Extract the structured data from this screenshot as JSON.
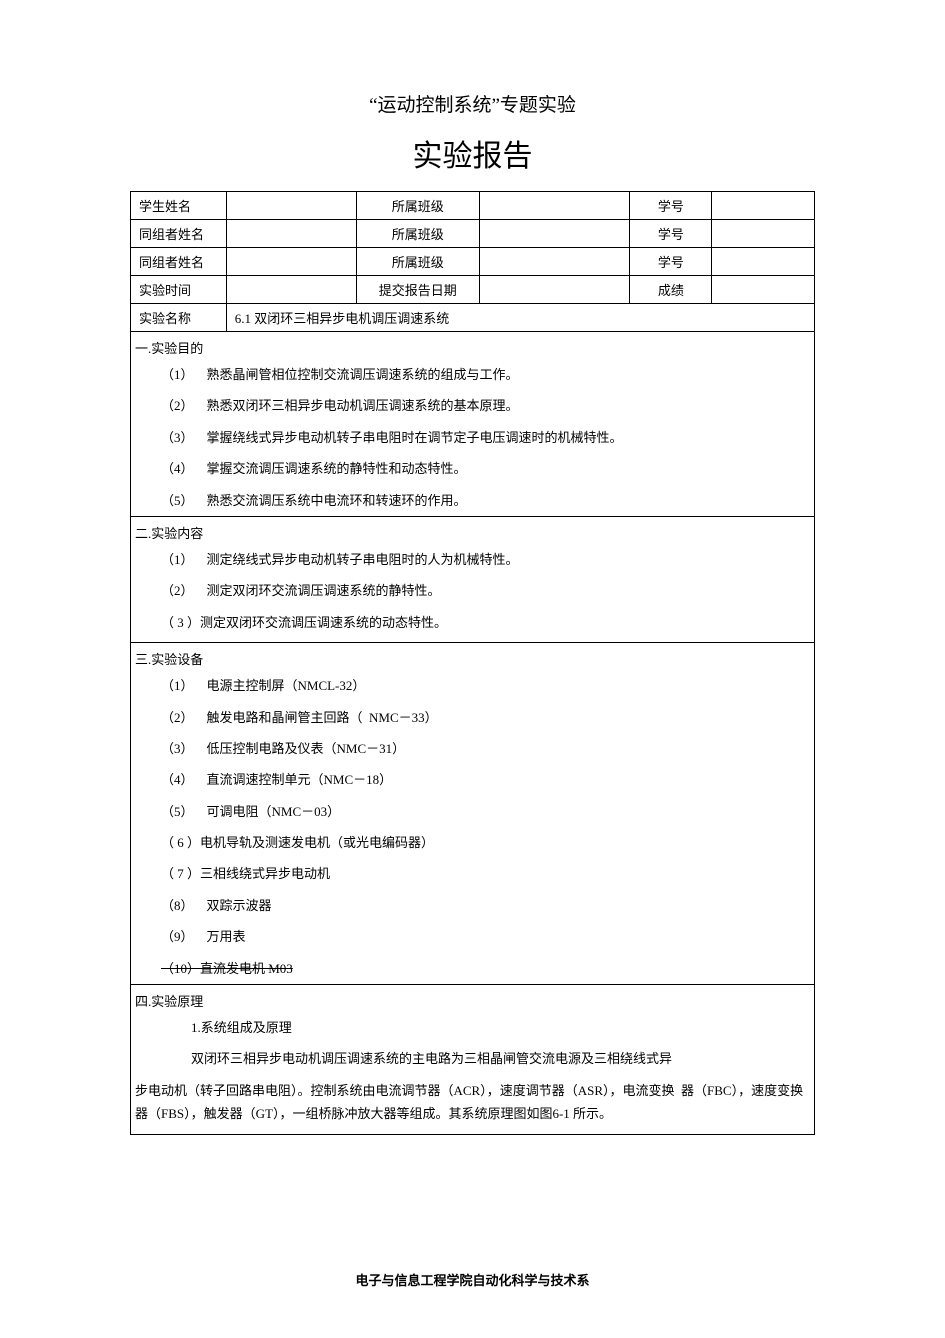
{
  "titles": {
    "small": "“运动控制系统”专题实验",
    "big": "实验报告"
  },
  "header": {
    "row1": {
      "c1": "学生姓名",
      "c2": "",
      "c3": "所属班级",
      "c4": "",
      "c5": "学号",
      "c6": ""
    },
    "row2": {
      "c1": "同组者姓名",
      "c2": "",
      "c3": "所属班级",
      "c4": "",
      "c5": "学号",
      "c6": ""
    },
    "row3": {
      "c1": "同组者姓名",
      "c2": "",
      "c3": "所属班级",
      "c4": "",
      "c5": "学号",
      "c6": ""
    },
    "row4": {
      "c1": "实验时间",
      "c2": "",
      "c3": "提交报告日期",
      "c4": "",
      "c5": "成绩",
      "c6": ""
    },
    "row5": {
      "c1": "实验名称",
      "c2": "6.1 双闭环三相异步电机调压调速系统"
    }
  },
  "sec1": {
    "title": "一.实验目的",
    "items": [
      "（1） 熟悉晶闸管相位控制交流调压调速系统的组成与工作。",
      "（2） 熟悉双闭环三相异步电动机调压调速系统的基本原理。",
      "（3） 掌握绕线式异步电动机转子串电阻时在调节定子电压调速时的机械特性。",
      "（4） 掌握交流调压调速系统的静特性和动态特性。",
      "（5） 熟悉交流调压系统中电流环和转速环的作用。"
    ]
  },
  "sec2": {
    "title": "二.实验内容",
    "items": [
      "（1） 测定绕线式异步电动机转子串电阻时的人为机械特性。",
      "（2） 测定双闭环交流调压调速系统的静特性。",
      "（ 3 ）测定双闭环交流调压调速系统的动态特性。"
    ]
  },
  "sec3": {
    "title": "三.实验设备",
    "items": [
      "（1） 电源主控制屏（NMCL-32）",
      "（2） 触发电路和晶闸管主回路（ NMC－33）",
      "（3） 低压控制电路及仪表（NMC－31）",
      "（4） 直流调速控制单元（NMC－18）",
      "（5） 可调电阻（NMC－03）",
      "（ 6 ）电机导轨及测速发电机（或光电编码器）",
      "（ 7 ）三相线绕式异步电动机",
      "（8） 双踪示波器",
      "（9） 万用表"
    ],
    "strike": "（10）直流发电机 M03"
  },
  "sec4": {
    "title": "四.实验原理",
    "sub": "1.系统组成及原理",
    "p1": "双闭环三相异步电动机调压调速系统的主电路为三相晶闸管交流电源及三相绕线式异",
    "p2": "步电动机（转子回路串电阻）。控制系统由电流调节器（ACR），速度调节器（ASR），电流变换 器（FBC），速度变换器（FBS），触发器（GT），一组桥脉冲放大器等组成。其系统原理图如图6-1 所示。"
  },
  "footer": "电子与信息工程学院自动化科学与技术系",
  "style": {
    "widths": {
      "c1": "14%",
      "c2": "19%",
      "c3": "18%",
      "c4": "22%",
      "c5": "12%",
      "c6": "15%"
    }
  }
}
